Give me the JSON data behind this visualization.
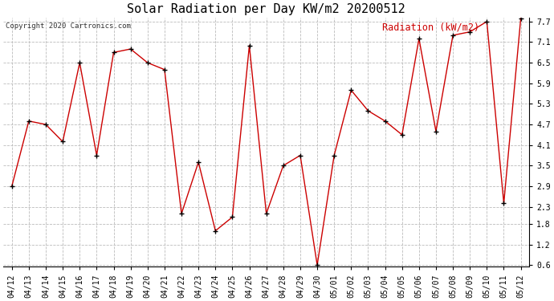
{
  "title": "Solar Radiation per Day KW/m2 20200512",
  "legend_label": "Radiation (kW/m2)",
  "copyright": "Copyright 2020 Cartronics.com",
  "dates": [
    "04/12",
    "04/13",
    "04/14",
    "04/15",
    "04/16",
    "04/17",
    "04/18",
    "04/19",
    "04/20",
    "04/21",
    "04/22",
    "04/23",
    "04/24",
    "04/25",
    "04/26",
    "04/27",
    "04/28",
    "04/29",
    "04/30",
    "05/01",
    "05/02",
    "05/03",
    "05/04",
    "05/05",
    "05/06",
    "05/07",
    "05/08",
    "05/09",
    "05/10",
    "05/11",
    "05/12"
  ],
  "values": [
    2.9,
    4.8,
    4.7,
    4.2,
    6.5,
    3.8,
    6.8,
    6.9,
    6.5,
    6.3,
    2.1,
    3.6,
    1.6,
    2.0,
    7.0,
    2.1,
    3.5,
    3.8,
    0.6,
    3.8,
    5.7,
    5.1,
    4.8,
    4.4,
    7.2,
    4.5,
    7.3,
    7.4,
    7.7,
    2.4,
    7.8
  ],
  "ylim_min": 0.55,
  "ylim_max": 7.82,
  "yticks": [
    0.6,
    1.2,
    1.8,
    2.3,
    2.9,
    3.5,
    4.1,
    4.7,
    5.3,
    5.9,
    6.5,
    7.1,
    7.7
  ],
  "line_color": "#cc0000",
  "marker_color": "#000000",
  "legend_color": "#cc0000",
  "title_fontsize": 11,
  "copyright_fontsize": 6.5,
  "legend_fontsize": 8.5,
  "tick_fontsize": 7,
  "background_color": "#ffffff",
  "grid_color": "#bbbbbb"
}
